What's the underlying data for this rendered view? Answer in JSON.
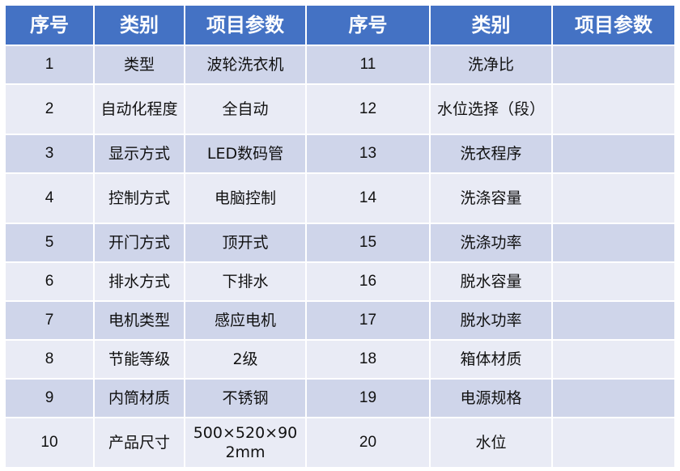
{
  "headers": [
    "序号",
    "类别",
    "项目参数",
    "序号",
    "类别",
    "项目参数"
  ],
  "rows": [
    {
      "n1": "1",
      "c1": "类型",
      "v1": "波轮洗衣机",
      "n2": "11",
      "c2": "洗净比",
      "v2": ""
    },
    {
      "n1": "2",
      "c1": "自动化程度",
      "v1": "全自动",
      "n2": "12",
      "c2": "水位选择（段）",
      "v2": ""
    },
    {
      "n1": "3",
      "c1": "显示方式",
      "v1": "LED数码管",
      "n2": "13",
      "c2": "洗衣程序",
      "v2": ""
    },
    {
      "n1": "4",
      "c1": "控制方式",
      "v1": "电脑控制",
      "n2": "14",
      "c2": "洗涤容量",
      "v2": ""
    },
    {
      "n1": "5",
      "c1": "开门方式",
      "v1": "顶开式",
      "n2": "15",
      "c2": "洗涤功率",
      "v2": ""
    },
    {
      "n1": "6",
      "c1": "排水方式",
      "v1": "下排水",
      "n2": "16",
      "c2": "脱水容量",
      "v2": ""
    },
    {
      "n1": "7",
      "c1": "电机类型",
      "v1": "感应电机",
      "n2": "17",
      "c2": "脱水功率",
      "v2": ""
    },
    {
      "n1": "8",
      "c1": "节能等级",
      "v1": "2级",
      "n2": "18",
      "c2": "箱体材质",
      "v2": ""
    },
    {
      "n1": "9",
      "c1": "内筒材质",
      "v1": "不锈钢",
      "n2": "19",
      "c2": "电源规格",
      "v2": ""
    },
    {
      "n1": "10",
      "c1": "产品尺寸",
      "v1": "500×520×902mm",
      "n2": "20",
      "c2": "水位",
      "v2": ""
    }
  ],
  "colors": {
    "header": "#4472c4",
    "row_odd": "#cfd5ea",
    "row_even": "#e9ebf5"
  }
}
